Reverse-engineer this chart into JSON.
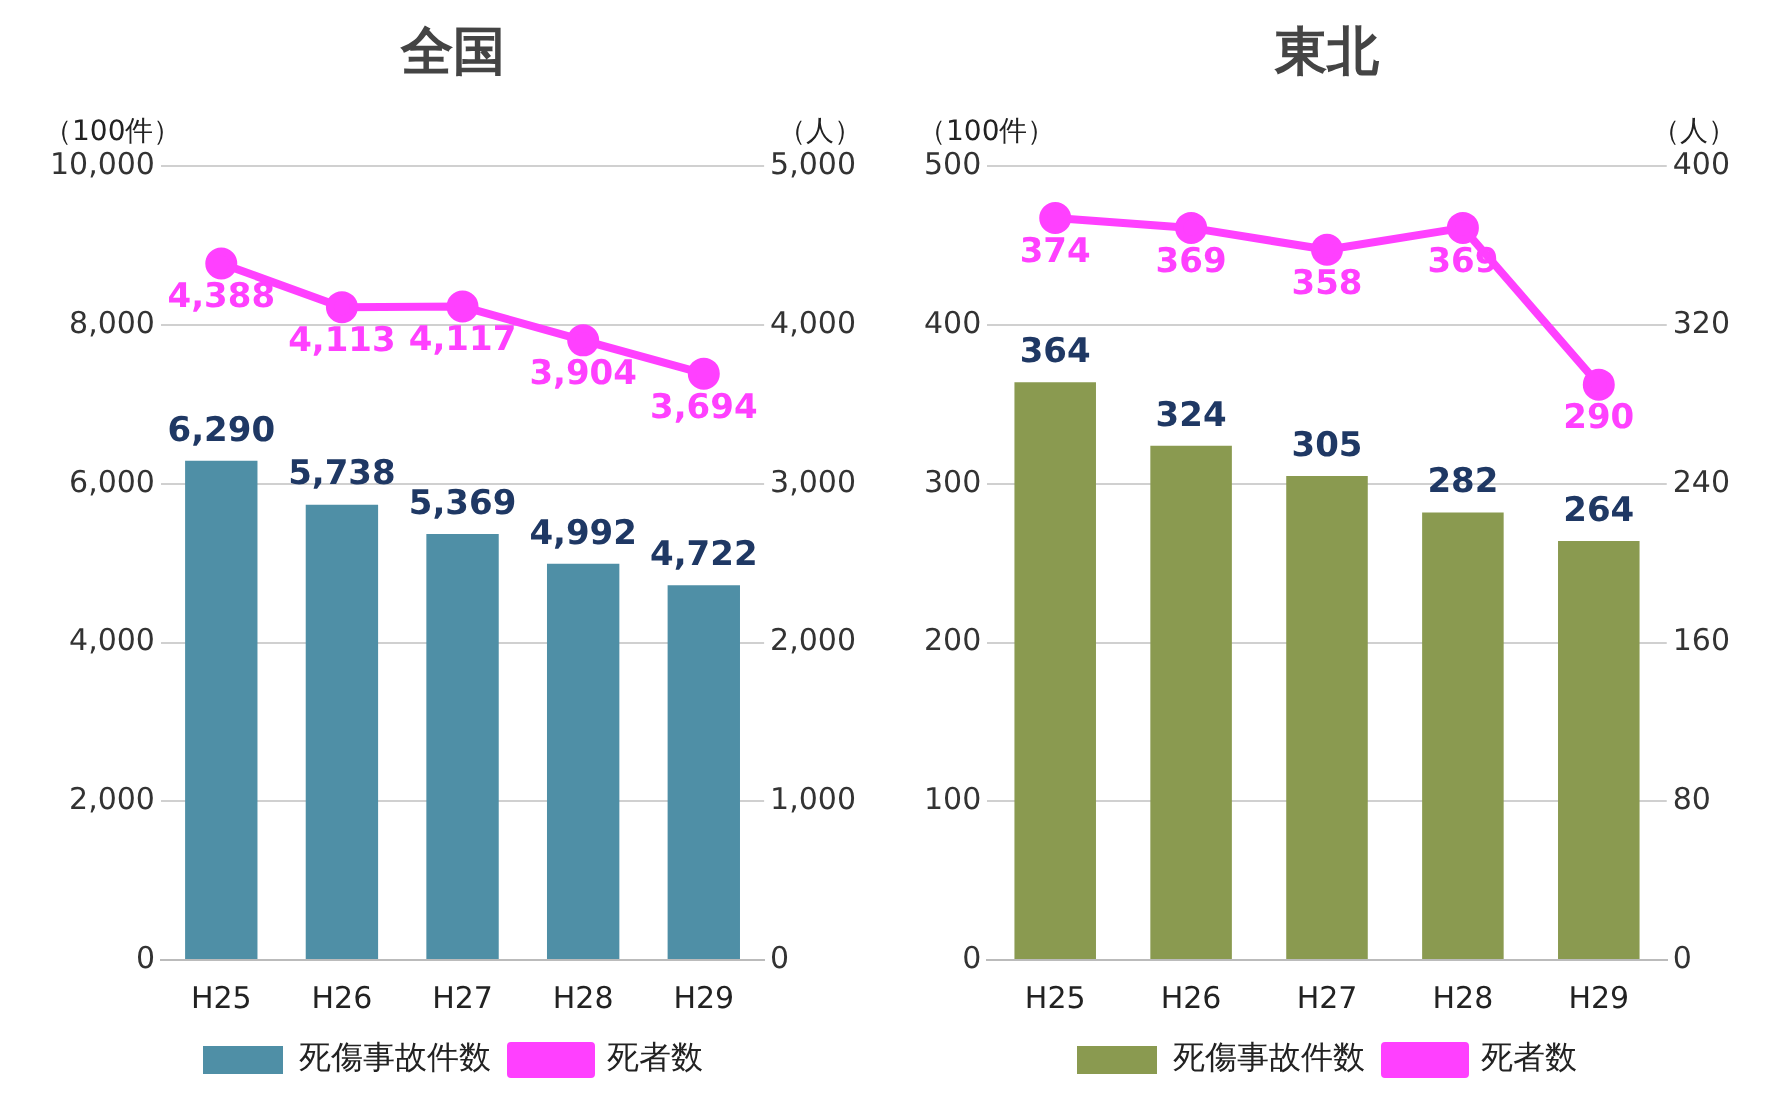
{
  "chart_data": [
    {
      "type": "bar",
      "title": "全国",
      "ylabel": "（100件）",
      "y2label": "（人）",
      "categories": [
        "H25",
        "H26",
        "H27",
        "H28",
        "H29"
      ],
      "series": [
        {
          "name": "死傷事故件数",
          "type": "bar",
          "color": "#4f8fa6",
          "values": [
            6290,
            5738,
            5369,
            4992,
            4722
          ],
          "value_labels": [
            "6,290",
            "5,738",
            "5,369",
            "4,992",
            "4,722"
          ]
        },
        {
          "name": "死者数",
          "type": "line",
          "axis": "y2",
          "color": "#ff40ff",
          "values": [
            4388,
            4113,
            4117,
            3904,
            3694
          ],
          "value_labels": [
            "4,388",
            "4,113",
            "4,117",
            "3,904",
            "3,694"
          ]
        }
      ],
      "ylim": [
        0,
        10000
      ],
      "yticks": [
        0,
        {
          "value": 2000,
          "label": "2,000"
        },
        {
          "value": 4000,
          "label": "4,000"
        },
        {
          "value": 6000,
          "label": "6,000"
        },
        {
          "value": 8000,
          "label": "8,000"
        },
        {
          "value": 10000,
          "label": "10,000"
        }
      ],
      "y2lim": [
        0,
        5000
      ],
      "y2ticks": [
        0,
        {
          "value": 1000,
          "label": "1,000"
        },
        {
          "value": 2000,
          "label": "2,000"
        },
        {
          "value": 3000,
          "label": "3,000"
        },
        {
          "value": 4000,
          "label": "4,000"
        },
        {
          "value": 5000,
          "label": "5,000"
        }
      ],
      "grid": "y",
      "legend": "bottom",
      "marker": "circle",
      "data_labels": true
    },
    {
      "type": "bar",
      "title": "東北",
      "ylabel": "（100件）",
      "y2label": "（人）",
      "categories": [
        "H25",
        "H26",
        "H27",
        "H28",
        "H29"
      ],
      "series": [
        {
          "name": "死傷事故件数",
          "type": "bar",
          "color": "#8a9a50",
          "values": [
            364,
            324,
            305,
            282,
            264
          ]
        },
        {
          "name": "死者数",
          "type": "line",
          "axis": "y2",
          "color": "#ff40ff",
          "values": [
            374,
            369,
            358,
            369,
            290
          ]
        }
      ],
      "ylim": [
        0,
        500
      ],
      "yticks": [
        0,
        100,
        200,
        300,
        400,
        500
      ],
      "y2lim": [
        0,
        400
      ],
      "y2ticks": [
        0,
        80,
        160,
        240,
        320,
        400
      ],
      "grid": "y",
      "legend": "bottom",
      "marker": "circle",
      "data_labels": true
    }
  ]
}
